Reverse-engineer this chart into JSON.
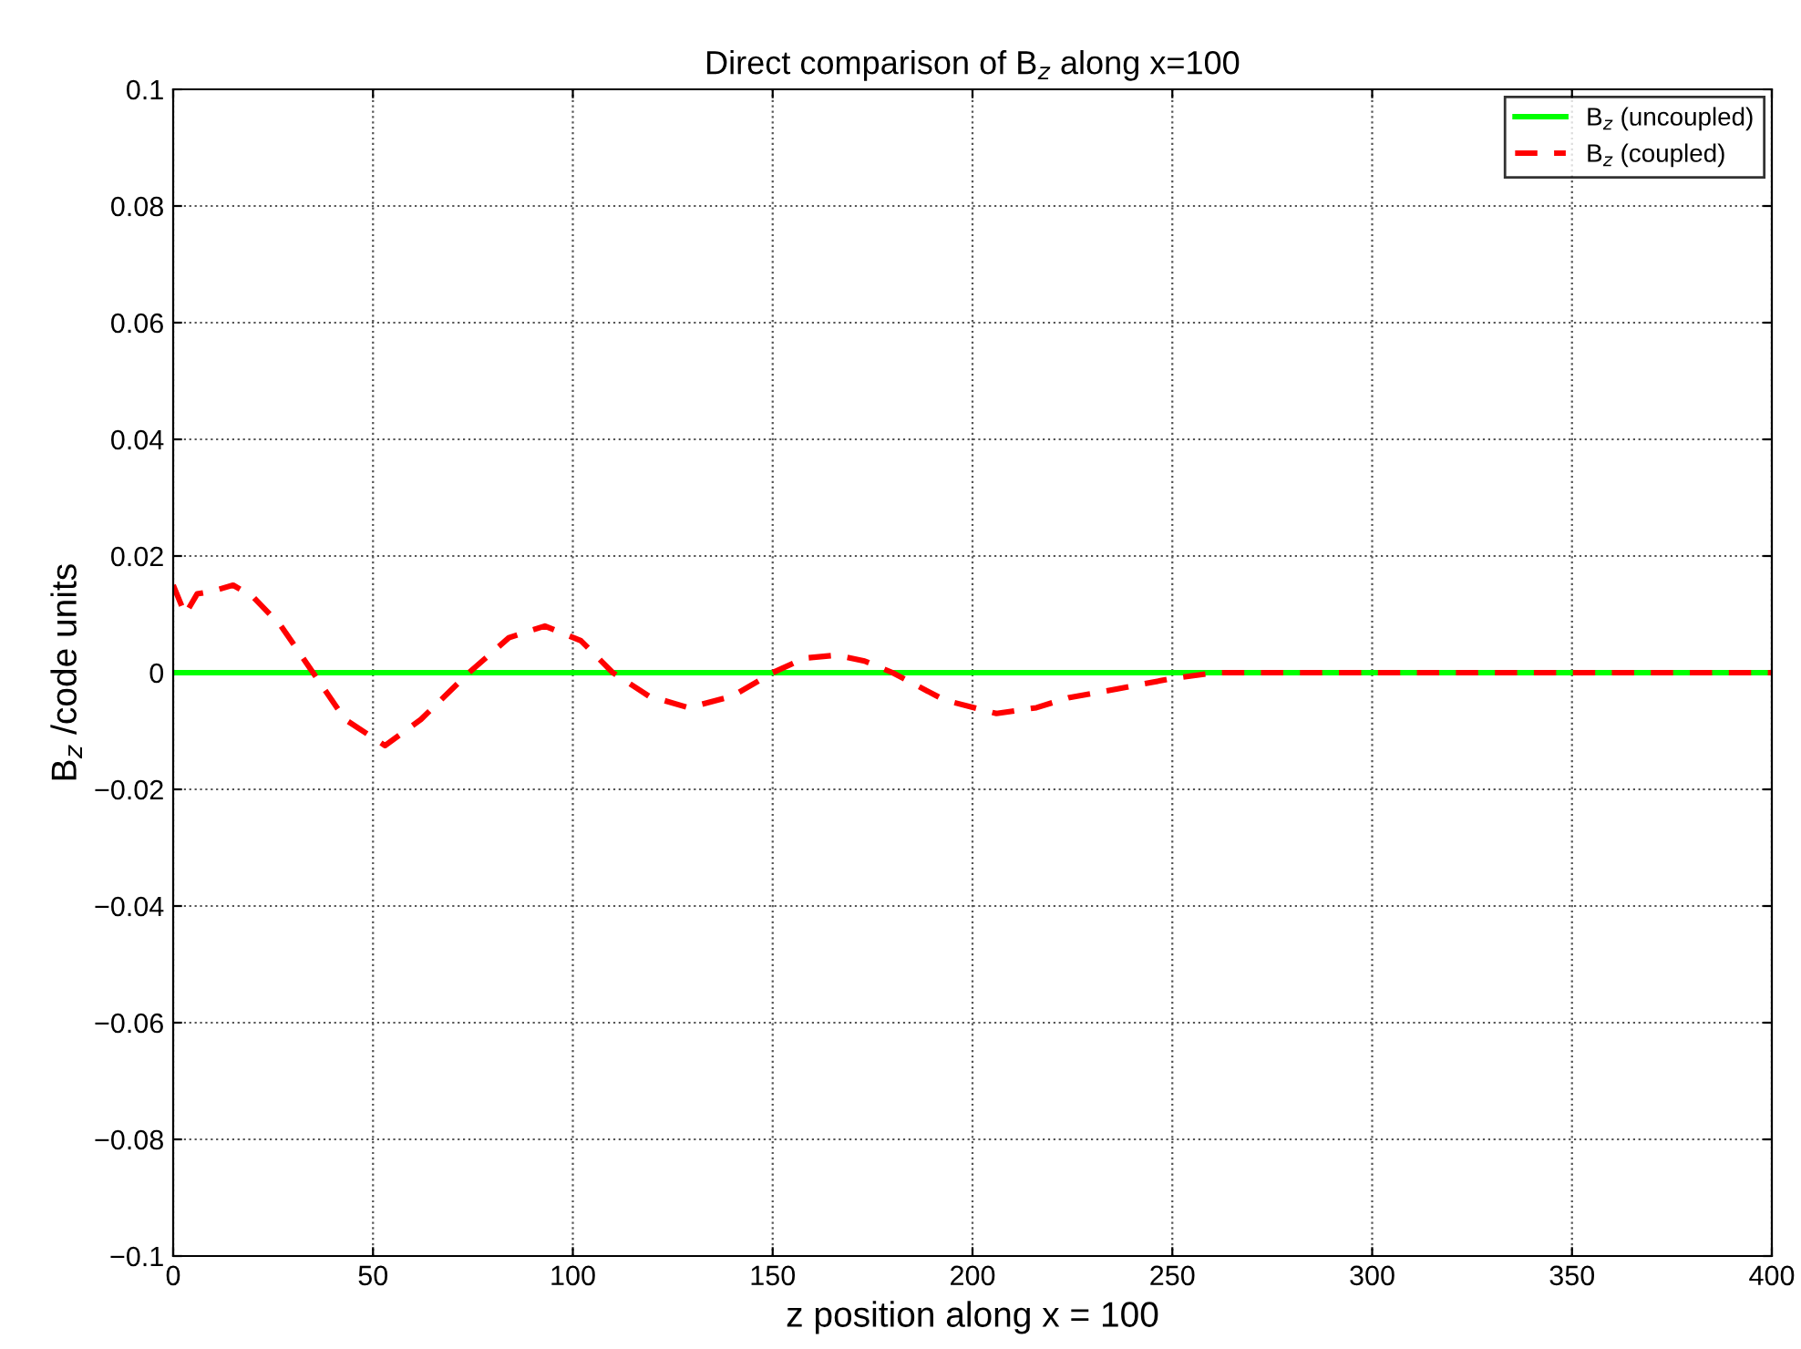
{
  "chart_data": {
    "type": "line",
    "title": "Direct comparison of B$_{z}$ along x=100",
    "xlabel": "z position along x = 100",
    "ylabel": "B$_{z}$ /code units",
    "xlim": [
      0,
      400
    ],
    "ylim": [
      -0.1,
      0.1
    ],
    "xticks": [
      0,
      50,
      100,
      150,
      200,
      250,
      300,
      350,
      400
    ],
    "yticks": [
      {
        "value": -0.1,
        "label": "−0.1"
      },
      {
        "value": -0.08,
        "label": "−0.08"
      },
      {
        "value": -0.06,
        "label": "−0.06"
      },
      {
        "value": -0.04,
        "label": "−0.04"
      },
      {
        "value": -0.02,
        "label": "−0.02"
      },
      0,
      0.02,
      0.04,
      0.06,
      0.08,
      0.1
    ],
    "grid": true,
    "legend": "top right",
    "series": [
      {
        "name": "B$_{z}$ (uncoupled)",
        "color": "#00ff00",
        "line_style": "solid",
        "x": [
          0,
          100,
          200,
          300,
          400
        ],
        "values": [
          0,
          0,
          0,
          0,
          0
        ]
      },
      {
        "name": "B$_{z}$ (coupled)",
        "color": "#ff0000",
        "line_style": "dashed",
        "x": [
          0,
          3,
          6,
          10,
          15,
          20,
          27,
          35,
          43,
          53,
          62,
          74,
          84,
          93,
          102,
          110,
          119,
          129,
          140,
          150,
          158,
          166,
          173,
          180,
          193,
          206,
          216,
          224,
          236,
          250,
          261,
          300,
          350,
          400
        ],
        "values": [
          0.015,
          0.01,
          0.0135,
          0.014,
          0.015,
          0.013,
          0.008,
          0.0,
          -0.008,
          -0.0125,
          -0.008,
          0.0,
          0.006,
          0.008,
          0.0055,
          0.0,
          -0.004,
          -0.006,
          -0.004,
          0.0,
          0.0025,
          0.003,
          0.002,
          0.0,
          -0.0047,
          -0.007,
          -0.006,
          -0.0043,
          -0.0028,
          -0.001,
          0.0,
          0.0,
          0.0,
          0.0
        ]
      }
    ]
  }
}
